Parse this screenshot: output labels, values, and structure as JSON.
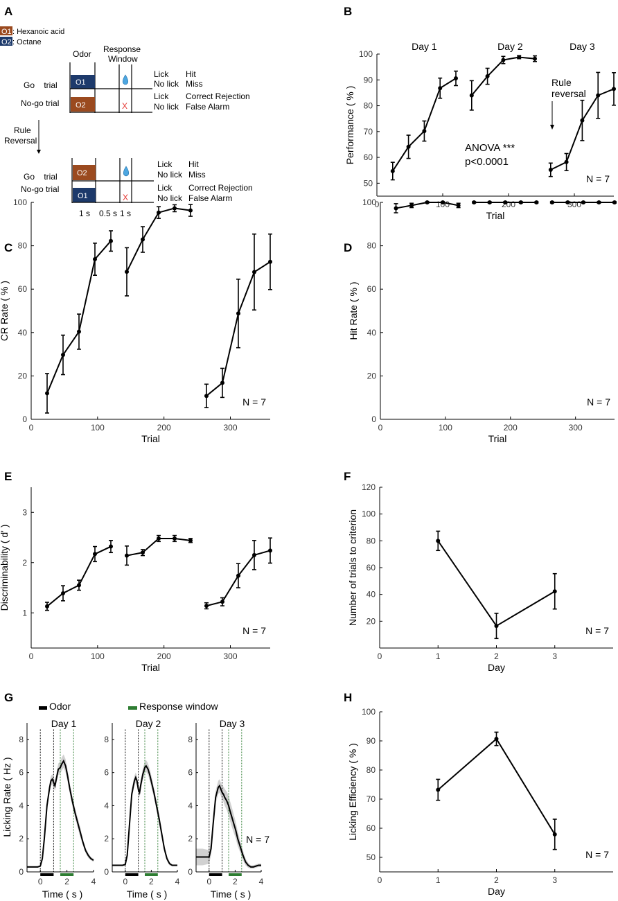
{
  "panels": {
    "A": "A",
    "B": "B",
    "C": "C",
    "D": "D",
    "E": "E",
    "F": "F",
    "G": "G",
    "H": "H"
  },
  "colors": {
    "o1": "#9b4a1f",
    "o2": "#1d3a6b",
    "green": "#2e7d32",
    "black": "#000000",
    "shade": "#bdbdbd",
    "water": "#4da6e0",
    "xmark": "#e53935"
  },
  "panel_a": {
    "legend_o1_tag": "O1",
    "legend_o1_name": ": Hexanoic acid",
    "legend_o2_tag": "O2",
    "legend_o2_name": ": Octane",
    "odor_header": "Odor",
    "response_header_1": "Response",
    "response_header_2": "Window",
    "go_trial": "Go    trial",
    "nogo_trial": "No-go trial",
    "lick": "Lick",
    "no_lick": "No lick",
    "hit": "Hit",
    "miss": "Miss",
    "correct_rejection": "Correct Rejection",
    "false_alarm": "False Alarm",
    "rule_1": "Rule",
    "rule_2": "Reversal",
    "box_o1": "O1",
    "box_o2": "O2",
    "x_mark": "X",
    "t_odor": "1 s",
    "t_delay": "0.5 s",
    "t_resp": "1 s"
  },
  "chart_data": [
    {
      "id": "B",
      "type": "line",
      "xlabel": "Trial",
      "ylabel": "Performance ( % )",
      "xlim": [
        0,
        360
      ],
      "ylim": [
        45,
        100
      ],
      "xticks": [
        0,
        100,
        200,
        300
      ],
      "yticks": [
        50,
        60,
        70,
        80,
        90,
        100
      ],
      "series": [
        {
          "name": "Day 1",
          "x": [
            24,
            48,
            72,
            96,
            120
          ],
          "y": [
            54.7,
            64.1,
            70.2,
            86.8,
            90.6
          ],
          "err": [
            3.4,
            4.5,
            3.9,
            3.9,
            2.8
          ]
        },
        {
          "name": "Day 2",
          "x": [
            144,
            168,
            192,
            216,
            240
          ],
          "y": [
            84,
            91.4,
            97.7,
            98.8,
            98.2
          ],
          "err": [
            5.7,
            3.1,
            1.4,
            0.6,
            1.1
          ]
        },
        {
          "name": "Day 3",
          "x": [
            264,
            288,
            312,
            336,
            360
          ],
          "y": [
            55.2,
            58.2,
            74.3,
            84,
            86.5
          ],
          "err": [
            2.6,
            3.3,
            7.8,
            8.9,
            6.3
          ]
        }
      ],
      "day_labels": [
        "Day 1",
        "Day 2",
        "Day 3"
      ],
      "annotations": {
        "anova": "ANOVA ***",
        "p": "p<0.0001",
        "rule_1": "Rule",
        "rule_2": "reversal"
      },
      "n_label": "N = 7"
    },
    {
      "id": "C",
      "type": "line",
      "xlabel": "Trial",
      "ylabel": "CR Rate ( % )",
      "xlim": [
        0,
        360
      ],
      "ylim": [
        0,
        100
      ],
      "xticks": [
        0,
        100,
        200,
        300
      ],
      "yticks": [
        0,
        20,
        40,
        60,
        80,
        100
      ],
      "series": [
        {
          "name": "Day 1",
          "x": [
            24,
            48,
            72,
            96,
            120
          ],
          "y": [
            12,
            29.7,
            40.4,
            73.8,
            82.2
          ],
          "err": [
            9.1,
            9.1,
            8.1,
            7.4,
            4.7
          ]
        },
        {
          "name": "Day 2",
          "x": [
            144,
            168,
            192,
            216,
            240
          ],
          "y": [
            68,
            82.9,
            95.3,
            97.3,
            96.3
          ],
          "err": [
            11.1,
            5.9,
            2.7,
            1.6,
            2.7
          ]
        },
        {
          "name": "Day 3",
          "x": [
            264,
            288,
            312,
            336,
            360
          ],
          "y": [
            10.8,
            16.8,
            48.8,
            67.9,
            72.6
          ],
          "err": [
            5.4,
            6.7,
            15.8,
            17.5,
            12.8
          ]
        }
      ],
      "n_label": "N = 7"
    },
    {
      "id": "D",
      "type": "line",
      "xlabel": "Trial",
      "ylabel": "Hit Rate ( % )",
      "xlim": [
        0,
        360
      ],
      "ylim": [
        0,
        100
      ],
      "xticks": [
        0,
        100,
        200,
        300
      ],
      "yticks": [
        0,
        20,
        40,
        60,
        80,
        100
      ],
      "series": [
        {
          "name": "Day 1",
          "x": [
            24,
            48,
            72,
            96,
            120
          ],
          "y": [
            97.3,
            98.6,
            100,
            100,
            98.6
          ],
          "err": [
            2.1,
            1,
            0.3,
            0.3,
            1
          ]
        },
        {
          "name": "Day 2",
          "x": [
            144,
            168,
            192,
            216,
            240
          ],
          "y": [
            100,
            100,
            100,
            100,
            100
          ],
          "err": [
            0.3,
            0.3,
            0.3,
            0.3,
            0.3
          ]
        },
        {
          "name": "Day 3",
          "x": [
            264,
            288,
            312,
            336,
            360
          ],
          "y": [
            100,
            100,
            100,
            100,
            100
          ],
          "err": [
            0.3,
            0.3,
            0.3,
            0.3,
            0.3
          ]
        }
      ],
      "n_label": "N = 7"
    },
    {
      "id": "E",
      "type": "line",
      "xlabel": "Trial",
      "ylabel": "Discriminability ( d' )",
      "xlim": [
        0,
        360
      ],
      "ylim": [
        0.3,
        3.5
      ],
      "xticks": [
        0,
        100,
        200,
        300
      ],
      "yticks": [
        1,
        2,
        3
      ],
      "series": [
        {
          "name": "Day 1",
          "x": [
            24,
            48,
            72,
            96,
            120
          ],
          "y": [
            1.13,
            1.39,
            1.55,
            2.17,
            2.32
          ],
          "err": [
            0.08,
            0.15,
            0.1,
            0.15,
            0.12
          ]
        },
        {
          "name": "Day 2",
          "x": [
            144,
            168,
            192,
            216,
            240
          ],
          "y": [
            2.14,
            2.2,
            2.48,
            2.48,
            2.44
          ],
          "err": [
            0.19,
            0.06,
            0.06,
            0.06,
            0.04
          ]
        },
        {
          "name": "Day 3",
          "x": [
            264,
            288,
            312,
            336,
            360
          ],
          "y": [
            1.14,
            1.22,
            1.74,
            2.15,
            2.24
          ],
          "err": [
            0.06,
            0.08,
            0.24,
            0.29,
            0.25
          ]
        }
      ],
      "n_label": "N = 7"
    },
    {
      "id": "F",
      "type": "line",
      "xlabel": "Day",
      "ylabel": "Number of trials to criterion",
      "xlim": [
        0,
        4
      ],
      "ylim": [
        0,
        120
      ],
      "xticks": [
        0,
        1,
        2,
        3
      ],
      "yticks": [
        20,
        40,
        60,
        80,
        100,
        120
      ],
      "series": [
        {
          "name": "trials",
          "x": [
            1,
            2,
            3
          ],
          "y": [
            80,
            16.5,
            42.3
          ],
          "err": [
            7.2,
            9.4,
            13.2
          ]
        }
      ],
      "n_label": "N = 7"
    },
    {
      "id": "G",
      "type": "line",
      "ylabel": "Licking Rate ( Hz )",
      "xlabel": "Time ( s )",
      "xlim": [
        -1,
        4
      ],
      "ylim": [
        0,
        9
      ],
      "xticks": [
        0,
        2,
        4
      ],
      "yticks": [
        0,
        2,
        4,
        6,
        8
      ],
      "legend": {
        "odor": "Odor",
        "response": "Response window"
      },
      "odor_window": [
        0,
        1
      ],
      "response_window": [
        1.5,
        2.5
      ],
      "subplots": [
        {
          "title": "Day 1",
          "t": [
            -1,
            -0.5,
            -0.2,
            0,
            0.15,
            0.3,
            0.5,
            0.7,
            0.8,
            0.9,
            1.0,
            1.1,
            1.2,
            1.35,
            1.5,
            1.6,
            1.75,
            1.9,
            2.05,
            2.2,
            2.4,
            2.6,
            2.8,
            3.0,
            3.2,
            3.4,
            3.6,
            3.8,
            4
          ],
          "y": [
            0.3,
            0.3,
            0.3,
            0.35,
            0.8,
            2.0,
            4.0,
            5.1,
            5.5,
            5.6,
            5.4,
            5.2,
            5.6,
            6.2,
            6.3,
            6.5,
            6.7,
            6.4,
            5.8,
            5.1,
            4.3,
            3.6,
            3.0,
            2.4,
            1.8,
            1.3,
            1.0,
            0.8,
            0.7
          ],
          "sd": [
            0.05,
            0.05,
            0.05,
            0.05,
            0.1,
            0.2,
            0.3,
            0.3,
            0.3,
            0.3,
            0.3,
            0.3,
            0.3,
            0.35,
            0.35,
            0.4,
            0.4,
            0.4,
            0.35,
            0.3,
            0.3,
            0.3,
            0.3,
            0.3,
            0.2,
            0.15,
            0.15,
            0.1,
            0.1
          ]
        },
        {
          "title": "Day 2",
          "t": [
            -1,
            -0.5,
            -0.2,
            0,
            0.15,
            0.3,
            0.5,
            0.7,
            0.8,
            0.9,
            1.0,
            1.1,
            1.2,
            1.35,
            1.5,
            1.6,
            1.75,
            1.9,
            2.05,
            2.2,
            2.4,
            2.6,
            2.8,
            3.0,
            3.2,
            3.4,
            3.6,
            3.8,
            4
          ],
          "y": [
            0.4,
            0.4,
            0.4,
            0.45,
            1.0,
            2.6,
            4.7,
            5.5,
            5.7,
            5.5,
            5.0,
            4.8,
            5.3,
            5.9,
            6.3,
            6.4,
            6.2,
            5.8,
            5.3,
            4.8,
            4.0,
            3.2,
            2.3,
            1.4,
            0.8,
            0.5,
            0.4,
            0.4,
            0.4
          ],
          "sd": [
            0.05,
            0.05,
            0.05,
            0.05,
            0.1,
            0.25,
            0.3,
            0.3,
            0.3,
            0.3,
            0.3,
            0.3,
            0.3,
            0.35,
            0.35,
            0.35,
            0.35,
            0.35,
            0.35,
            0.3,
            0.3,
            0.3,
            0.25,
            0.2,
            0.15,
            0.1,
            0.05,
            0.05,
            0.05
          ]
        },
        {
          "title": "Day 3",
          "t": [
            -1,
            -0.5,
            -0.2,
            0,
            0.15,
            0.3,
            0.5,
            0.7,
            0.8,
            0.9,
            1.0,
            1.1,
            1.2,
            1.35,
            1.5,
            1.6,
            1.75,
            1.9,
            2.05,
            2.2,
            2.4,
            2.6,
            2.8,
            3.0,
            3.2,
            3.4,
            3.6,
            3.8,
            4
          ],
          "y": [
            0.9,
            0.9,
            0.9,
            0.9,
            1.4,
            2.8,
            4.5,
            5.1,
            5.2,
            5.0,
            4.8,
            4.7,
            4.5,
            4.3,
            4.0,
            3.7,
            3.3,
            2.9,
            2.5,
            2.0,
            1.5,
            1.0,
            0.6,
            0.4,
            0.3,
            0.3,
            0.35,
            0.4,
            0.4
          ],
          "sd": [
            0.5,
            0.5,
            0.45,
            0.4,
            0.4,
            0.4,
            0.4,
            0.4,
            0.4,
            0.4,
            0.4,
            0.45,
            0.5,
            0.55,
            0.6,
            0.6,
            0.6,
            0.55,
            0.5,
            0.45,
            0.35,
            0.3,
            0.2,
            0.15,
            0.1,
            0.1,
            0.1,
            0.1,
            0.1
          ],
          "n_label": "N = 7"
        }
      ]
    },
    {
      "id": "H",
      "type": "line",
      "xlabel": "Day",
      "ylabel": "Licking Efficiency ( % )",
      "xlim": [
        0,
        4
      ],
      "ylim": [
        45,
        100
      ],
      "xticks": [
        0,
        1,
        2,
        3
      ],
      "yticks": [
        50,
        60,
        70,
        80,
        90,
        100
      ],
      "series": [
        {
          "name": "efficiency",
          "x": [
            1,
            2,
            3
          ],
          "y": [
            73.2,
            90.7,
            57.9
          ],
          "err": [
            3.6,
            2.3,
            5.2
          ]
        }
      ],
      "n_label": "N = 7"
    }
  ]
}
